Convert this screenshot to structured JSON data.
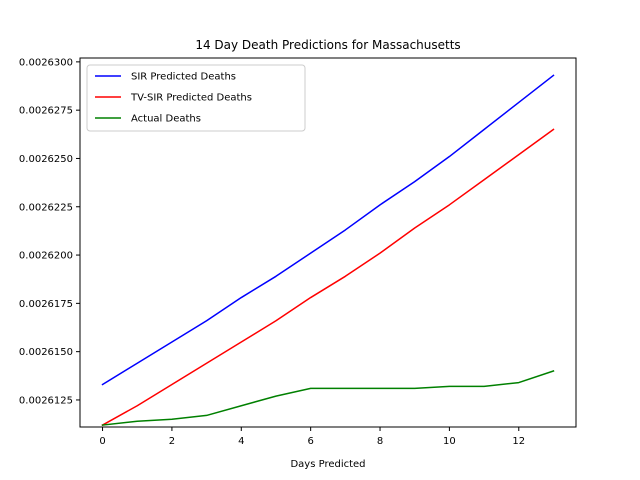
{
  "chart_data": {
    "type": "line",
    "title": "14 Day Death Predictions for Massachusetts",
    "xlabel": "Days Predicted",
    "ylabel": "",
    "xlim": [
      -0.65,
      13.65
    ],
    "ylim": [
      0.0026111,
      0.0026302
    ],
    "xticks": [
      0,
      2,
      4,
      6,
      8,
      10,
      12
    ],
    "xtick_labels": [
      "0",
      "2",
      "4",
      "6",
      "8",
      "10",
      "12"
    ],
    "yticks": [
      0.0026125,
      0.002615,
      0.0026175,
      0.00262,
      0.0026225,
      0.002625,
      0.0026275,
      0.00263
    ],
    "ytick_labels": [
      "0.0026125",
      "0.0026150",
      "0.0026175",
      "0.0026200",
      "0.0026225",
      "0.0026250",
      "0.0026275",
      "0.0026300"
    ],
    "grid": false,
    "legend_position": "top-left",
    "x": [
      0,
      1,
      2,
      3,
      4,
      5,
      6,
      7,
      8,
      9,
      10,
      11,
      12,
      13
    ],
    "series": [
      {
        "name": "SIR Predicted Deaths",
        "color": "#0000ff",
        "values": [
          0.0026133,
          0.0026144,
          0.0026155,
          0.0026166,
          0.0026178,
          0.0026189,
          0.0026201,
          0.0026213,
          0.0026226,
          0.0026238,
          0.0026251,
          0.0026265,
          0.0026279,
          0.0026293
        ]
      },
      {
        "name": "TV-SIR Predicted Deaths",
        "color": "#ff0000",
        "values": [
          0.0026112,
          0.0026122,
          0.0026133,
          0.0026144,
          0.0026155,
          0.0026166,
          0.0026178,
          0.0026189,
          0.0026201,
          0.0026214,
          0.0026226,
          0.0026239,
          0.0026252,
          0.0026265
        ]
      },
      {
        "name": "Actual Deaths",
        "color": "#008000",
        "values": [
          0.0026112,
          0.0026114,
          0.0026115,
          0.0026117,
          0.0026122,
          0.0026127,
          0.0026131,
          0.0026131,
          0.0026131,
          0.0026131,
          0.0026132,
          0.0026132,
          0.0026134,
          0.002614
        ]
      }
    ]
  }
}
